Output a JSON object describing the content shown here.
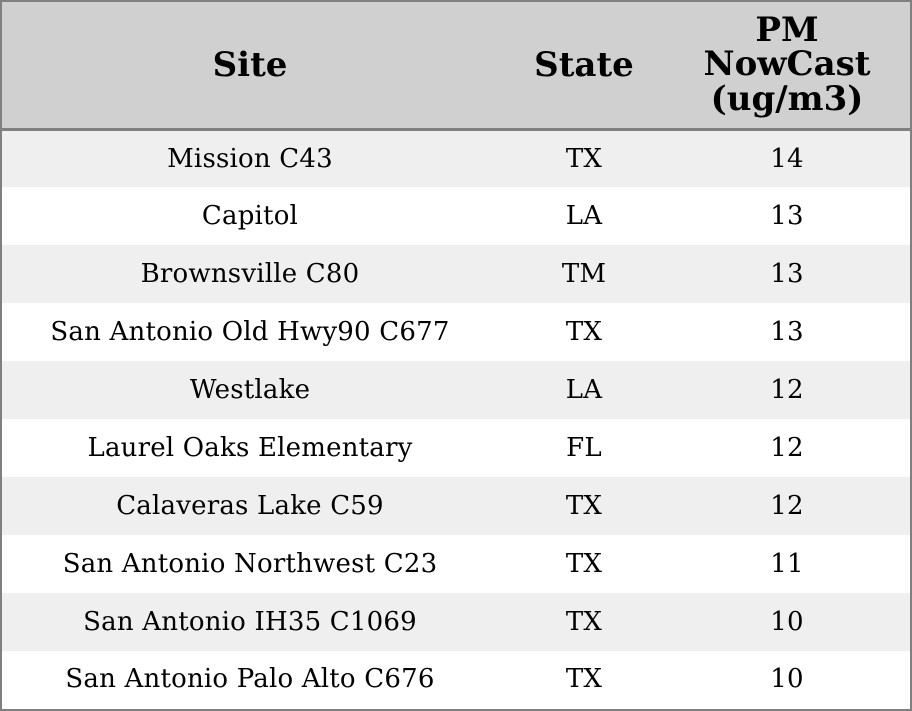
{
  "chart_data": {
    "type": "table",
    "columns": [
      "Site",
      "State",
      "PM NowCast (ug/m3)"
    ],
    "header_lines": {
      "site": [
        "Site"
      ],
      "state": [
        "State"
      ],
      "pm": [
        "PM",
        "NowCast",
        "(ug/m3)"
      ]
    },
    "rows": [
      {
        "site": "Mission C43",
        "state": "TX",
        "pm": "14"
      },
      {
        "site": "Capitol",
        "state": "LA",
        "pm": "13"
      },
      {
        "site": "Brownsville C80",
        "state": "TM",
        "pm": "13"
      },
      {
        "site": "San Antonio Old Hwy90 C677",
        "state": "TX",
        "pm": "13"
      },
      {
        "site": "Westlake",
        "state": "LA",
        "pm": "12"
      },
      {
        "site": "Laurel Oaks Elementary",
        "state": "FL",
        "pm": "12"
      },
      {
        "site": "Calaveras Lake C59",
        "state": "TX",
        "pm": "12"
      },
      {
        "site": "San Antonio Northwest C23",
        "state": "TX",
        "pm": "11"
      },
      {
        "site": "San Antonio IH35 C1069",
        "state": "TX",
        "pm": "10"
      },
      {
        "site": "San Antonio Palo Alto C676",
        "state": "TX",
        "pm": "10"
      }
    ]
  },
  "colors": {
    "header_bg": "#d0d0d0",
    "row_odd_bg": "#efefef",
    "row_even_bg": "#ffffff",
    "border": "#808080"
  }
}
